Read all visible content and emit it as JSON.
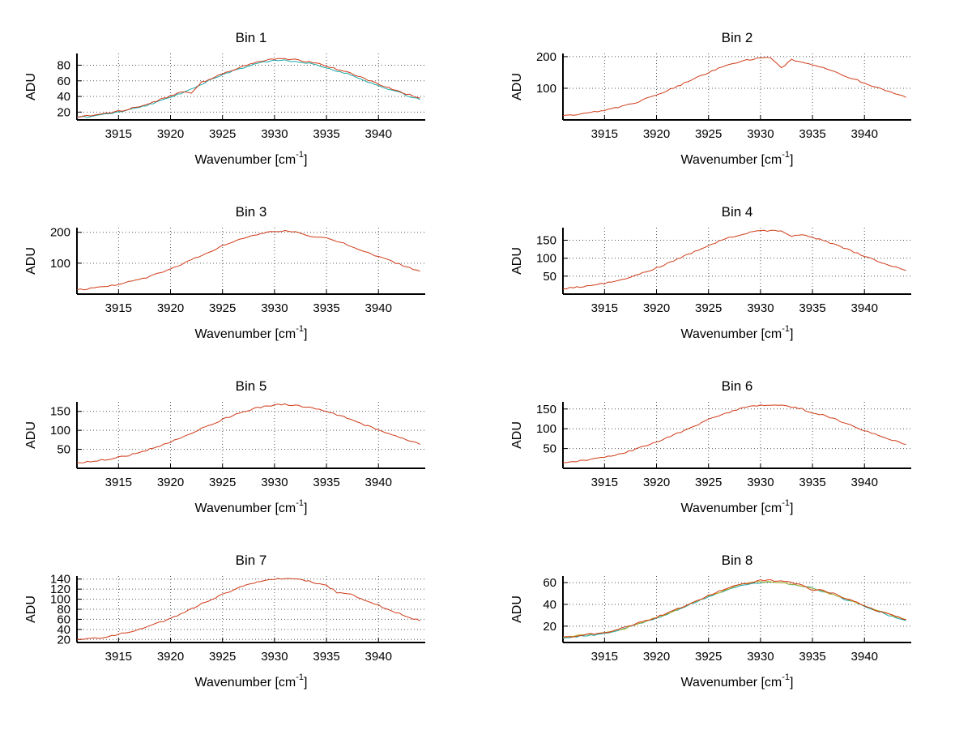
{
  "page": {
    "background": "#ffffff"
  },
  "style": {
    "trace_red": "#cf3a17",
    "trace_teal": "#17a7a7",
    "trace_olive": "#bcae22",
    "grid_color": "#555555",
    "axis_color": "#000000"
  },
  "chart_data": [
    {
      "type": "line",
      "title": "Bin 1",
      "xlabel": "Wavenumber [cm⁻¹]",
      "xlabel_parts": {
        "base": "Wavenumber [cm",
        "sup": "-1",
        "end": "]"
      },
      "ylabel": "ADU",
      "grid": true,
      "legend": "none",
      "xlim": [
        3911,
        3944.5
      ],
      "ylim": [
        10,
        95
      ],
      "xticks": [
        3915,
        3920,
        3925,
        3930,
        3935,
        3940
      ],
      "yticks": [
        20,
        40,
        60,
        80
      ],
      "x": [
        3911,
        3912,
        3913,
        3914,
        3915,
        3916,
        3917,
        3918,
        3919,
        3920,
        3921,
        3922,
        3923,
        3924,
        3925,
        3926,
        3927,
        3928,
        3929,
        3930,
        3931,
        3932,
        3933,
        3934,
        3935,
        3936,
        3937,
        3938,
        3939,
        3940,
        3941,
        3942,
        3943,
        3944
      ],
      "series": [
        {
          "name": "trace-teal",
          "color": "#17a7a7",
          "y": [
            13,
            14,
            16,
            18,
            20,
            23,
            26,
            30,
            34,
            39,
            44,
            50,
            56,
            62,
            67,
            73,
            77,
            81,
            84,
            86,
            86,
            85,
            83,
            81,
            77,
            73,
            69,
            64,
            59,
            54,
            49,
            45,
            40,
            36
          ]
        },
        {
          "name": "trace-red",
          "color": "#cf3a17",
          "y": [
            14,
            15,
            17,
            19,
            21,
            24,
            27,
            31,
            36,
            41,
            46,
            44,
            58,
            63,
            69,
            74,
            79,
            83,
            86,
            88,
            88,
            87,
            85,
            83,
            79,
            75,
            71,
            66,
            61,
            56,
            51,
            46,
            42,
            38
          ]
        }
      ]
    },
    {
      "type": "line",
      "title": "Bin 2",
      "xlabel": "Wavenumber [cm⁻¹]",
      "xlabel_parts": {
        "base": "Wavenumber [cm",
        "sup": "-1",
        "end": "]"
      },
      "ylabel": "ADU",
      "grid": true,
      "legend": "none",
      "xlim": [
        3911,
        3944.5
      ],
      "ylim": [
        0,
        210
      ],
      "xticks": [
        3915,
        3920,
        3925,
        3930,
        3935,
        3940
      ],
      "yticks": [
        100,
        200
      ],
      "x": [
        3911,
        3912,
        3913,
        3914,
        3915,
        3916,
        3917,
        3918,
        3919,
        3920,
        3921,
        3922,
        3923,
        3924,
        3925,
        3926,
        3927,
        3928,
        3929,
        3930,
        3931,
        3932,
        3933,
        3934,
        3935,
        3936,
        3937,
        3938,
        3939,
        3940,
        3941,
        3942,
        3943,
        3944
      ],
      "series": [
        {
          "name": "trace-red",
          "color": "#cf3a17",
          "y": [
            14,
            16,
            20,
            25,
            31,
            37,
            46,
            55,
            67,
            79,
            92,
            106,
            121,
            136,
            150,
            163,
            174,
            184,
            191,
            196,
            197,
            163,
            190,
            184,
            175,
            165,
            154,
            141,
            129,
            117,
            104,
            93,
            82,
            71
          ]
        }
      ]
    },
    {
      "type": "line",
      "title": "Bin 3",
      "xlabel": "Wavenumber [cm⁻¹]",
      "xlabel_parts": {
        "base": "Wavenumber [cm",
        "sup": "-1",
        "end": "]"
      },
      "ylabel": "ADU",
      "grid": true,
      "legend": "none",
      "xlim": [
        3911,
        3944.5
      ],
      "ylim": [
        0,
        215
      ],
      "xticks": [
        3915,
        3920,
        3925,
        3930,
        3935,
        3940
      ],
      "yticks": [
        100,
        200
      ],
      "x": [
        3911,
        3912,
        3913,
        3914,
        3915,
        3916,
        3917,
        3918,
        3919,
        3920,
        3921,
        3922,
        3923,
        3924,
        3925,
        3926,
        3927,
        3928,
        3929,
        3930,
        3931,
        3932,
        3933,
        3934,
        3935,
        3936,
        3937,
        3938,
        3939,
        3940,
        3941,
        3942,
        3943,
        3944
      ],
      "series": [
        {
          "name": "trace-red",
          "color": "#cf3a17",
          "y": [
            14,
            17,
            21,
            26,
            32,
            39,
            47,
            57,
            69,
            82,
            96,
            110,
            126,
            141,
            156,
            170,
            181,
            191,
            199,
            204,
            205,
            203,
            190,
            185,
            182,
            172,
            160,
            147,
            134,
            121,
            109,
            97,
            85,
            74
          ]
        }
      ]
    },
    {
      "type": "line",
      "title": "Bin 4",
      "xlabel": "Wavenumber [cm⁻¹]",
      "xlabel_parts": {
        "base": "Wavenumber [cm",
        "sup": "-1",
        "end": "]"
      },
      "ylabel": "ADU",
      "grid": true,
      "legend": "none",
      "xlim": [
        3911,
        3944.5
      ],
      "ylim": [
        0,
        185
      ],
      "xticks": [
        3915,
        3920,
        3925,
        3930,
        3935,
        3940
      ],
      "yticks": [
        50,
        100,
        150
      ],
      "x": [
        3911,
        3912,
        3913,
        3914,
        3915,
        3916,
        3917,
        3918,
        3919,
        3920,
        3921,
        3922,
        3923,
        3924,
        3925,
        3926,
        3927,
        3928,
        3929,
        3930,
        3931,
        3932,
        3933,
        3934,
        3935,
        3936,
        3937,
        3938,
        3939,
        3940,
        3941,
        3942,
        3943,
        3944
      ],
      "series": [
        {
          "name": "trace-red",
          "color": "#cf3a17",
          "y": [
            15,
            18,
            21,
            25,
            30,
            36,
            43,
            52,
            62,
            73,
            84,
            97,
            110,
            123,
            135,
            147,
            157,
            165,
            172,
            176,
            177,
            175,
            162,
            165,
            158,
            149,
            139,
            128,
            117,
            106,
            95,
            85,
            75,
            66
          ]
        }
      ]
    },
    {
      "type": "line",
      "title": "Bin 5",
      "xlabel": "Wavenumber [cm⁻¹]",
      "xlabel_parts": {
        "base": "Wavenumber [cm",
        "sup": "-1",
        "end": "]"
      },
      "ylabel": "ADU",
      "grid": true,
      "legend": "none",
      "xlim": [
        3911,
        3944.5
      ],
      "ylim": [
        0,
        175
      ],
      "xticks": [
        3915,
        3920,
        3925,
        3930,
        3935,
        3940
      ],
      "yticks": [
        50,
        100,
        150
      ],
      "x": [
        3911,
        3912,
        3913,
        3914,
        3915,
        3916,
        3917,
        3918,
        3919,
        3920,
        3921,
        3922,
        3923,
        3924,
        3925,
        3926,
        3927,
        3928,
        3929,
        3930,
        3931,
        3932,
        3933,
        3934,
        3935,
        3936,
        3937,
        3938,
        3939,
        3940,
        3941,
        3942,
        3943,
        3944
      ],
      "series": [
        {
          "name": "trace-red",
          "color": "#cf3a17",
          "y": [
            15,
            17,
            20,
            24,
            29,
            34,
            42,
            50,
            59,
            69,
            80,
            92,
            105,
            117,
            128,
            140,
            149,
            157,
            163,
            167,
            168,
            166,
            162,
            157,
            150,
            141,
            132,
            121,
            111,
            101,
            91,
            81,
            72,
            63
          ]
        }
      ]
    },
    {
      "type": "line",
      "title": "Bin 6",
      "xlabel": "Wavenumber [cm⁻¹]",
      "xlabel_parts": {
        "base": "Wavenumber [cm",
        "sup": "-1",
        "end": "]"
      },
      "ylabel": "ADU",
      "grid": true,
      "legend": "none",
      "xlim": [
        3911,
        3944.5
      ],
      "ylim": [
        0,
        168
      ],
      "xticks": [
        3915,
        3920,
        3925,
        3930,
        3935,
        3940
      ],
      "yticks": [
        50,
        100,
        150
      ],
      "x": [
        3911,
        3912,
        3913,
        3914,
        3915,
        3916,
        3917,
        3918,
        3919,
        3920,
        3921,
        3922,
        3923,
        3924,
        3925,
        3926,
        3927,
        3928,
        3929,
        3930,
        3931,
        3932,
        3933,
        3934,
        3935,
        3936,
        3937,
        3938,
        3939,
        3940,
        3941,
        3942,
        3943,
        3944
      ],
      "series": [
        {
          "name": "trace-red",
          "color": "#cf3a17",
          "y": [
            15,
            17,
            20,
            24,
            28,
            33,
            40,
            48,
            57,
            66,
            77,
            88,
            100,
            111,
            123,
            133,
            142,
            150,
            156,
            159,
            160,
            159,
            155,
            150,
            140,
            135,
            126,
            116,
            106,
            96,
            87,
            78,
            69,
            60
          ]
        }
      ]
    },
    {
      "type": "line",
      "title": "Bin 7",
      "xlabel": "Wavenumber [cm⁻¹]",
      "xlabel_parts": {
        "base": "Wavenumber [cm",
        "sup": "-1",
        "end": "]"
      },
      "ylabel": "ADU",
      "grid": true,
      "legend": "none",
      "xlim": [
        3911,
        3944.5
      ],
      "ylim": [
        14,
        146
      ],
      "xticks": [
        3915,
        3920,
        3925,
        3930,
        3935,
        3940
      ],
      "yticks": [
        20,
        40,
        60,
        80,
        100,
        120,
        140
      ],
      "x": [
        3911,
        3912,
        3913,
        3914,
        3915,
        3916,
        3917,
        3918,
        3919,
        3920,
        3921,
        3922,
        3923,
        3924,
        3925,
        3926,
        3927,
        3928,
        3929,
        3930,
        3931,
        3932,
        3933,
        3934,
        3935,
        3936,
        3937,
        3938,
        3939,
        3940,
        3941,
        3942,
        3943,
        3944
      ],
      "series": [
        {
          "name": "trace-red",
          "color": "#cf3a17",
          "y": [
            19,
            21,
            23,
            26,
            30,
            35,
            40,
            47,
            54,
            62,
            71,
            81,
            91,
            100,
            110,
            118,
            126,
            132,
            137,
            140,
            141,
            140,
            137,
            132,
            127,
            114,
            112,
            104,
            96,
            88,
            79,
            72,
            64,
            57
          ]
        }
      ]
    },
    {
      "type": "line",
      "title": "Bin 8",
      "xlabel": "Wavenumber [cm⁻¹]",
      "xlabel_parts": {
        "base": "Wavenumber [cm",
        "sup": "-1",
        "end": "]"
      },
      "ylabel": "ADU",
      "grid": true,
      "legend": "none",
      "xlim": [
        3911,
        3944.5
      ],
      "ylim": [
        5,
        66
      ],
      "xticks": [
        3915,
        3920,
        3925,
        3930,
        3935,
        3940
      ],
      "yticks": [
        20,
        40,
        60
      ],
      "x": [
        3911,
        3912,
        3913,
        3914,
        3915,
        3916,
        3917,
        3918,
        3919,
        3920,
        3921,
        3922,
        3923,
        3924,
        3925,
        3926,
        3927,
        3928,
        3929,
        3930,
        3931,
        3932,
        3933,
        3934,
        3935,
        3936,
        3937,
        3938,
        3939,
        3940,
        3941,
        3942,
        3943,
        3944
      ],
      "series": [
        {
          "name": "trace-teal",
          "color": "#17a7a7",
          "y": [
            9,
            10,
            11,
            12,
            14,
            15,
            18,
            21,
            24,
            27,
            31,
            35,
            39,
            43,
            47,
            51,
            54,
            57,
            59,
            60,
            60,
            60,
            58,
            57,
            55,
            52,
            49,
            45,
            42,
            38,
            35,
            31,
            28,
            25
          ]
        },
        {
          "name": "trace-olive",
          "color": "#bcae22",
          "y": [
            10,
            11,
            12,
            13,
            14,
            16,
            18,
            22,
            25,
            28,
            31,
            35,
            39,
            44,
            48,
            51,
            55,
            58,
            60,
            61,
            61,
            60,
            59,
            57,
            55,
            52,
            49,
            46,
            42,
            39,
            35,
            32,
            29,
            26
          ]
        },
        {
          "name": "trace-red",
          "color": "#cf3a17",
          "y": [
            10,
            10,
            12,
            13,
            14,
            16,
            19,
            22,
            25,
            28,
            32,
            36,
            40,
            44,
            48,
            52,
            56,
            58,
            60,
            62,
            62,
            61,
            60,
            58,
            53,
            53,
            50,
            46,
            43,
            39,
            35,
            32,
            29,
            26
          ]
        }
      ]
    }
  ]
}
